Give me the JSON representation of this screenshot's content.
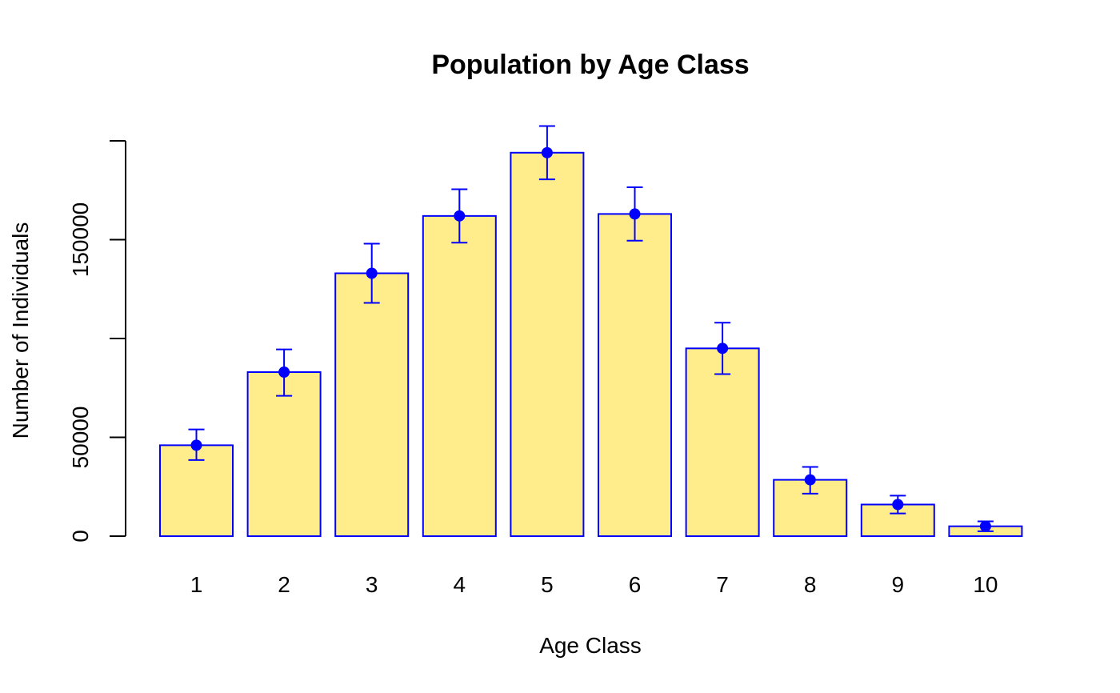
{
  "chart_data": {
    "type": "bar",
    "title": "Population by Age Class",
    "xlabel": "Age Class",
    "ylabel": "Number of Individuals",
    "categories": [
      "1",
      "2",
      "3",
      "4",
      "5",
      "6",
      "7",
      "8",
      "9",
      "10"
    ],
    "values": [
      46000,
      83000,
      133000,
      162000,
      194000,
      163000,
      95000,
      28500,
      16000,
      5000
    ],
    "error_bars": {
      "lower": [
        38500,
        71000,
        118000,
        148500,
        180500,
        149500,
        82000,
        21500,
        11500,
        2500
      ],
      "upper": [
        54000,
        94500,
        148000,
        175500,
        207500,
        176500,
        108000,
        35000,
        20500,
        7500
      ]
    },
    "ylim": [
      0,
      200000
    ],
    "yticks": [
      0,
      50000,
      150000
    ],
    "ytick_labels": [
      "0",
      "50000",
      "150000"
    ],
    "grid": false,
    "legend": "none",
    "colors": {
      "bar_fill": "#FFEC8B",
      "bar_stroke": "#0000FF",
      "point": "#0000FF",
      "error_bar": "#0000FF",
      "axis": "#000000"
    }
  }
}
